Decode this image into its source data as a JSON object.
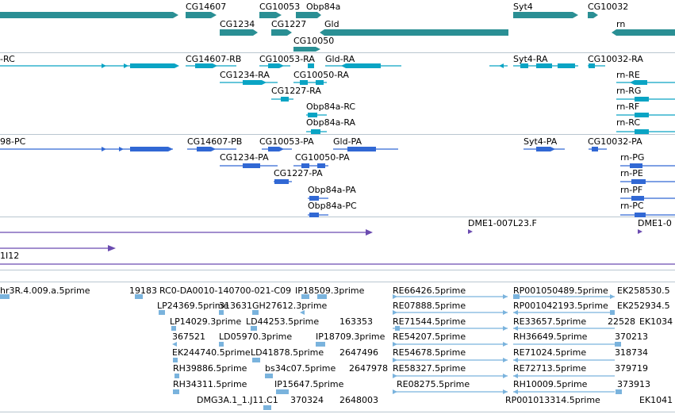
{
  "colors": {
    "gene": "#2a8f94",
    "transcript": "#0aa4c4",
    "polypeptide": "#3168d4",
    "bac": "#6b4bb0",
    "est": "#7ab3dd",
    "separator": "#b9c6d0"
  },
  "tracks": {
    "genes": {
      "labels": [
        "CG14607",
        "CG10053",
        "Obp84a",
        "Syt4",
        "CG10032",
        "CG1234",
        "CG1227",
        "Gld",
        "rn",
        "CG10050"
      ]
    },
    "transcripts": {
      "labels": [
        "-RC",
        "CG14607-RB",
        "CG10053-RA",
        "Gld-RA",
        "Syt4-RA",
        "CG10032-RA",
        "CG1234-RA",
        "CG10050-RA",
        "rn-RE",
        "CG1227-RA",
        "rn-RG",
        "Obp84a-RC",
        "rn-RF",
        "Obp84a-RA",
        "rn-RC"
      ]
    },
    "polypeptides": {
      "labels": [
        "98-PC",
        "CG14607-PB",
        "CG10053-PA",
        "Gld-PA",
        "Syt4-PA",
        "CG10032-PA",
        "CG1234-PA",
        "CG10050-PA",
        "rn-PG",
        "CG1227-PA",
        "rn-PE",
        "Obp84a-PA",
        "rn-PF",
        "Obp84a-PC",
        "rn-PC"
      ]
    },
    "bacs": {
      "labels": [
        "DME1-007L23.F",
        "DME1-0",
        "1I12"
      ]
    },
    "ests": {
      "labels": [
        "hr3R.4.009.a.5prime",
        "19183",
        "RC0-DA0010-140700-021-C09",
        "IP18509.3prime",
        "RE66426.5prime",
        "RP001050489.5prime",
        "EK258530.5",
        "LP24369.5prime",
        "313631",
        "GH27612.3prime",
        "RE07888.5prime",
        "RP001042193.5prime",
        "EK252934.5",
        "LP14029.3prime",
        "LD44253.5prime",
        "163353",
        "RE71544.5prime",
        "RE33657.5prime",
        "22528",
        "EK1034",
        "367521",
        "LD05970.3prime",
        "IP18709.3prime",
        "RE54207.5prime",
        "RH36649.5prime",
        "370213",
        "EK244740.5prime",
        "LD41878.5prime",
        "2647496",
        "RE54678.5prime",
        "RE71024.5prime",
        "318734",
        "RH39886.5prime",
        "bs34c07.5prime",
        "2647978",
        "RE58327.5prime",
        "RE72713.5prime",
        "379719",
        "RH34311.5prime",
        "IP15647.5prime",
        "RE08275.5prime",
        "RH10009.5prime",
        "373913",
        "DMG3A.1_1.J11.C1",
        "370324",
        "2648003",
        "RP001013314.5prime",
        "EK1041"
      ]
    }
  }
}
